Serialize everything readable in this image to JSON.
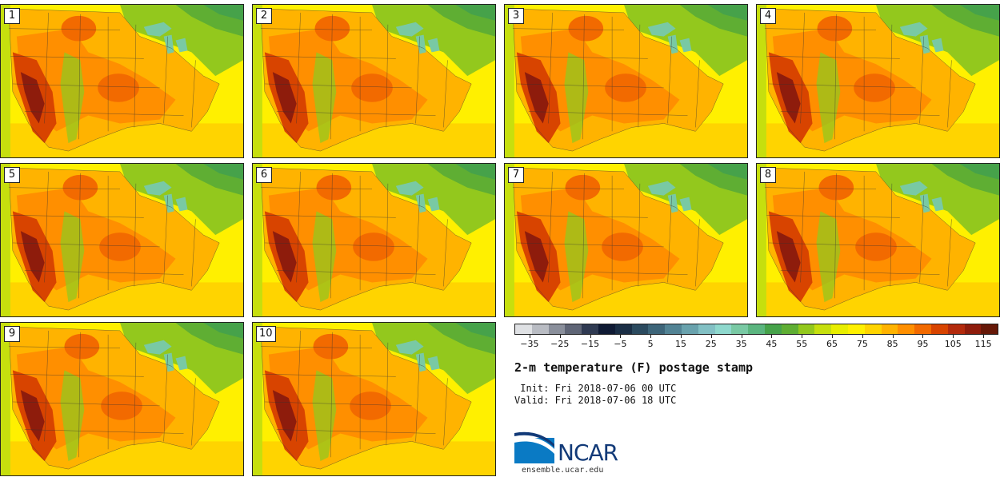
{
  "panels": [
    {
      "label": "1"
    },
    {
      "label": "2"
    },
    {
      "label": "3"
    },
    {
      "label": "4"
    },
    {
      "label": "5"
    },
    {
      "label": "6"
    },
    {
      "label": "7"
    },
    {
      "label": "8"
    },
    {
      "label": "9"
    },
    {
      "label": "10"
    }
  ],
  "colorbar": {
    "colors": [
      "#dfe1e4",
      "#b9bcc3",
      "#8a8f9b",
      "#5f6576",
      "#2f3a52",
      "#0f1a34",
      "#1a2e45",
      "#2b4a5f",
      "#3d6579",
      "#528394",
      "#69a2ad",
      "#82c0c4",
      "#8ed8cd",
      "#79c9a4",
      "#5bb57f",
      "#46a24a",
      "#5fae33",
      "#93c81d",
      "#c6df0e",
      "#e8ee00",
      "#fff000",
      "#ffd400",
      "#ffb300",
      "#ff8f00",
      "#f26a00",
      "#d84400",
      "#b32a0c",
      "#8e1c0c",
      "#661808"
    ],
    "tick_labels": [
      "−35",
      "−25",
      "−15",
      "−5",
      "5",
      "15",
      "25",
      "35",
      "45",
      "55",
      "65",
      "75",
      "85",
      "95",
      "105",
      "115"
    ],
    "tick_values": [
      -35,
      -25,
      -15,
      -5,
      5,
      15,
      25,
      35,
      45,
      55,
      65,
      75,
      85,
      95,
      105,
      115
    ],
    "range": [
      -40,
      120
    ]
  },
  "title": "2-m temperature (F) postage stamp",
  "init_text": " Init: Fri 2018-07-06 00 UTC",
  "valid_text": "Valid: Fri 2018-07-06 18 UTC",
  "logo": {
    "text": "NCAR",
    "url": "ensemble.ucar.edu"
  },
  "map_colors": {
    "ocean_warm": "#ffd400",
    "ocean_mid": "#fff000",
    "ocean_cool": "#c6df0e",
    "north": "#5fae33",
    "north_far": "#46a24a",
    "lakes": "#79c9a4",
    "warm": "#ff8f00",
    "hot": "#f26a00",
    "hotter": "#d84400",
    "hottest": "#8e1c0c",
    "mild": "#ffb300",
    "green": "#93c81d"
  }
}
